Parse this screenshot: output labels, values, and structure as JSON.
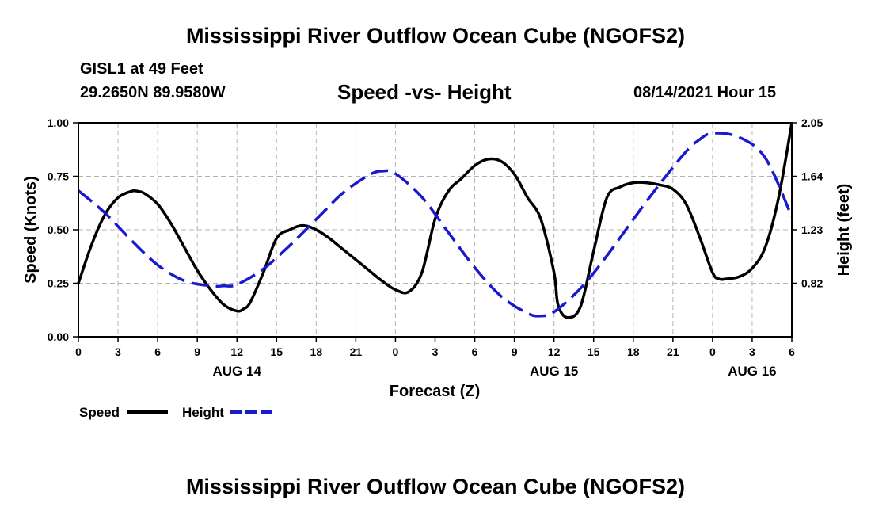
{
  "header": {
    "title": "Mississippi River Outflow Ocean Cube (NGOFS2)",
    "station": "GISL1 at 49 Feet",
    "coords": "29.2650N  89.9580W",
    "chart_title": "Speed -vs- Height",
    "datetime": "08/14/2021 Hour 15"
  },
  "footer": {
    "title": "Mississippi River Outflow Ocean Cube (NGOFS2)"
  },
  "legend": {
    "speed_label": "Speed",
    "height_label": "Height"
  },
  "colors": {
    "speed": "#000000",
    "height": "#1a1acd",
    "grid": "#b4b4b4"
  },
  "chart_data": {
    "type": "line",
    "title": "Speed -vs- Height",
    "xlabel": "Forecast (Z)",
    "ylabel": "Speed (Knots)",
    "y2label": "Height (feet)",
    "x_range": [
      0,
      54
    ],
    "ylim": [
      0,
      1
    ],
    "y2lim": [
      0.41,
      2.05
    ],
    "x_ticks": [
      {
        "x": 0,
        "label": "0"
      },
      {
        "x": 3,
        "label": "3"
      },
      {
        "x": 6,
        "label": "6"
      },
      {
        "x": 9,
        "label": "9"
      },
      {
        "x": 12,
        "label": "12"
      },
      {
        "x": 15,
        "label": "15"
      },
      {
        "x": 18,
        "label": "18"
      },
      {
        "x": 21,
        "label": "21"
      },
      {
        "x": 24,
        "label": "0"
      },
      {
        "x": 27,
        "label": "3"
      },
      {
        "x": 30,
        "label": "6"
      },
      {
        "x": 33,
        "label": "9"
      },
      {
        "x": 36,
        "label": "12"
      },
      {
        "x": 39,
        "label": "15"
      },
      {
        "x": 42,
        "label": "18"
      },
      {
        "x": 45,
        "label": "21"
      },
      {
        "x": 48,
        "label": "0"
      },
      {
        "x": 51,
        "label": "3"
      },
      {
        "x": 54,
        "label": "6"
      }
    ],
    "date_labels": [
      {
        "x": 12,
        "label": "AUG 14"
      },
      {
        "x": 36,
        "label": "AUG 15"
      },
      {
        "x": 51,
        "label": "AUG 16"
      }
    ],
    "y_ticks": [
      {
        "v": 0,
        "label": "0.00"
      },
      {
        "v": 0.25,
        "label": "0.25"
      },
      {
        "v": 0.5,
        "label": "0.50"
      },
      {
        "v": 0.75,
        "label": "0.75"
      },
      {
        "v": 1.0,
        "label": "1.00"
      }
    ],
    "y2_ticks": [
      {
        "v": 0.82,
        "label": "0.82"
      },
      {
        "v": 1.23,
        "label": "1.23"
      },
      {
        "v": 1.64,
        "label": "1.64"
      },
      {
        "v": 2.05,
        "label": "2.05"
      }
    ],
    "series": [
      {
        "name": "Speed",
        "axis": "left",
        "style": "solid",
        "x": [
          0,
          1,
          2,
          3,
          4,
          4.5,
          5,
          6,
          7,
          8,
          9,
          10,
          11,
          12,
          12.5,
          13,
          14,
          15,
          16,
          17,
          18,
          19,
          20,
          21,
          22,
          23,
          24,
          25,
          26,
          27,
          28,
          29,
          30,
          31,
          32,
          33,
          34,
          35,
          36,
          36.3,
          37,
          38,
          39,
          40,
          41,
          42,
          43,
          44,
          45,
          46,
          47,
          48,
          48.5,
          49,
          50,
          51,
          52,
          53,
          54
        ],
        "values": [
          0.25,
          0.43,
          0.57,
          0.65,
          0.68,
          0.68,
          0.67,
          0.62,
          0.53,
          0.42,
          0.31,
          0.22,
          0.15,
          0.12,
          0.13,
          0.16,
          0.3,
          0.46,
          0.5,
          0.52,
          0.5,
          0.46,
          0.41,
          0.36,
          0.31,
          0.26,
          0.22,
          0.21,
          0.3,
          0.55,
          0.68,
          0.74,
          0.8,
          0.83,
          0.82,
          0.76,
          0.65,
          0.55,
          0.3,
          0.15,
          0.09,
          0.14,
          0.4,
          0.65,
          0.7,
          0.72,
          0.72,
          0.71,
          0.69,
          0.62,
          0.47,
          0.3,
          0.27,
          0.27,
          0.28,
          0.32,
          0.42,
          0.65,
          1.0
        ]
      },
      {
        "name": "Height",
        "axis": "right",
        "style": "dashed",
        "x": [
          0,
          2,
          4,
          6,
          8,
          10,
          11,
          12,
          14,
          16,
          18,
          20,
          22,
          23,
          24,
          26,
          28,
          30,
          32,
          34,
          35,
          36,
          38,
          40,
          42,
          44,
          46,
          47,
          48,
          50,
          52,
          54
        ],
        "values": [
          1.53,
          1.36,
          1.15,
          0.96,
          0.84,
          0.8,
          0.8,
          0.81,
          0.93,
          1.11,
          1.31,
          1.51,
          1.65,
          1.68,
          1.66,
          1.48,
          1.21,
          0.94,
          0.72,
          0.59,
          0.57,
          0.6,
          0.78,
          1.03,
          1.31,
          1.58,
          1.83,
          1.92,
          1.97,
          1.94,
          1.78,
          1.33
        ]
      }
    ]
  }
}
